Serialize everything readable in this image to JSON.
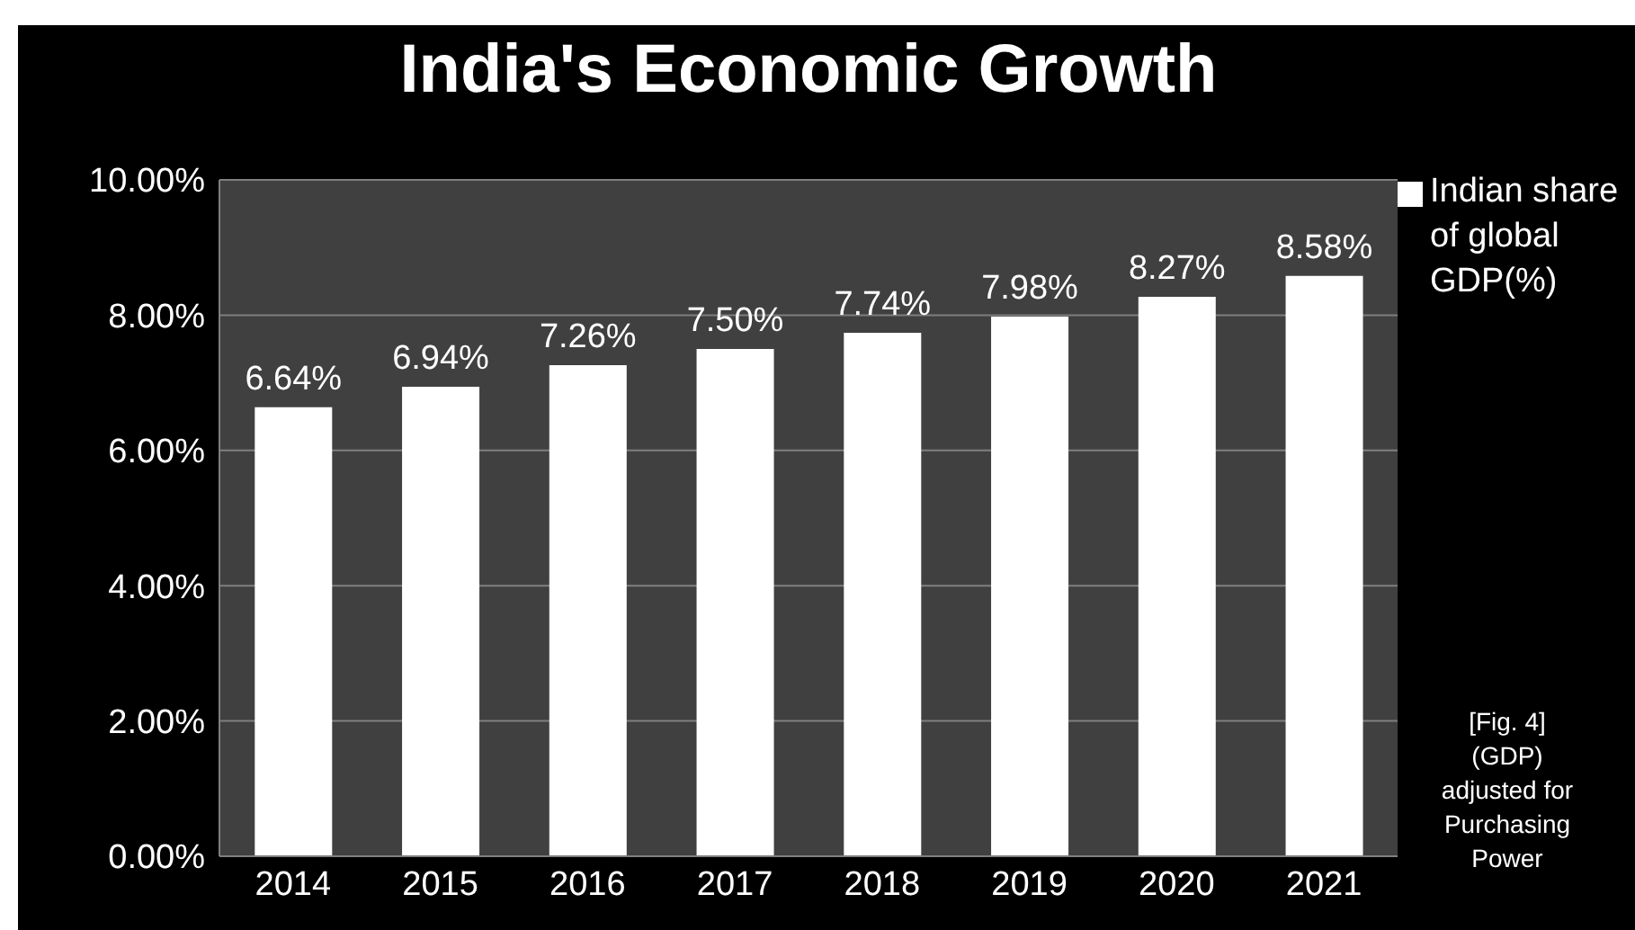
{
  "chart_data": {
    "type": "bar",
    "title": "India's Economic Growth",
    "categories": [
      "2014",
      "2015",
      "2016",
      "2017",
      "2018",
      "2019",
      "2020",
      "2021"
    ],
    "series": [
      {
        "name": "Indian share of global GDP(%)",
        "color": "#ffffff",
        "values": [
          6.64,
          6.94,
          7.26,
          7.5,
          7.74,
          7.98,
          8.27,
          8.58
        ]
      }
    ],
    "value_labels": [
      "6.64%",
      "6.94%",
      "7.26%",
      "7.50%",
      "7.74%",
      "7.98%",
      "8.27%",
      "8.58%"
    ],
    "ylim": [
      0,
      10
    ],
    "yticks": [
      {
        "value": 0,
        "label": "0.00%"
      },
      {
        "value": 2,
        "label": "2.00%"
      },
      {
        "value": 4,
        "label": "4.00%"
      },
      {
        "value": 6,
        "label": "6.00%"
      },
      {
        "value": 8,
        "label": "8.00%"
      },
      {
        "value": 10,
        "label": "10.00%"
      }
    ],
    "grid": "y",
    "legend": "top right",
    "annotations": [
      "[Fig. 4] (GDP) adjusted for Purchasing Power"
    ]
  }
}
